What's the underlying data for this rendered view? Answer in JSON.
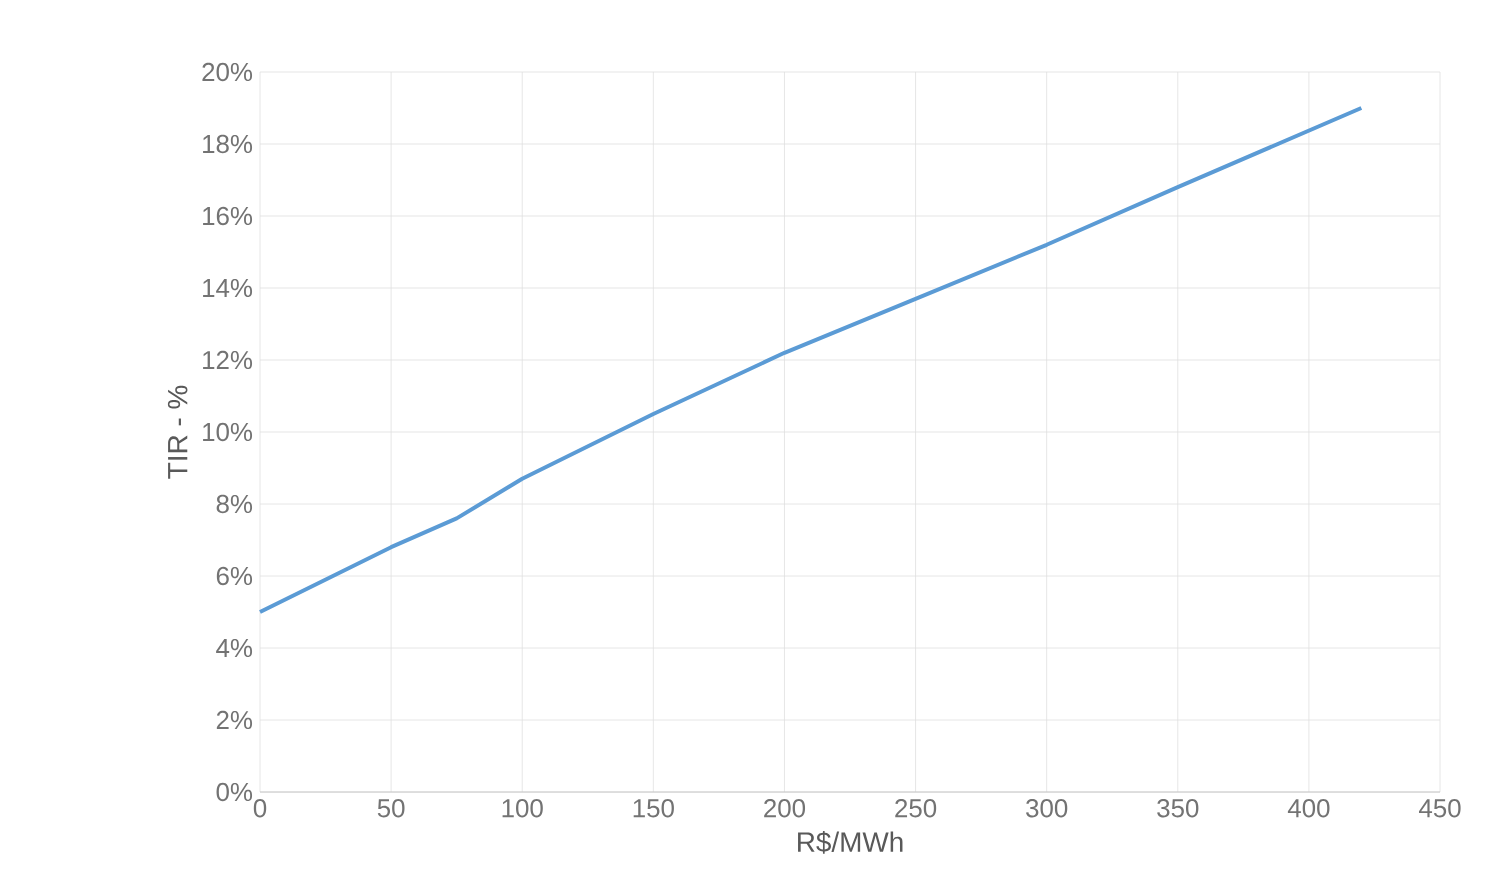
{
  "chart_data": {
    "type": "line",
    "xlabel": "R$/MWh",
    "ylabel": "TIR - %",
    "xlim": [
      0,
      450
    ],
    "xticks": [
      0,
      50,
      100,
      150,
      200,
      250,
      300,
      350,
      400,
      450
    ],
    "ylim": [
      0,
      20
    ],
    "yticks": [
      {
        "value": 0,
        "label": "0%"
      },
      {
        "value": 2,
        "label": "2%"
      },
      {
        "value": 4,
        "label": "4%"
      },
      {
        "value": 6,
        "label": "6%"
      },
      {
        "value": 8,
        "label": "8%"
      },
      {
        "value": 10,
        "label": "10%"
      },
      {
        "value": 12,
        "label": "12%"
      },
      {
        "value": 14,
        "label": "14%"
      },
      {
        "value": 16,
        "label": "16%"
      },
      {
        "value": 18,
        "label": "18%"
      },
      {
        "value": 20,
        "label": "20%"
      }
    ],
    "grid": true,
    "marker": "none",
    "line_style": "solid",
    "series": [
      {
        "color": "#5b9bd5",
        "x": [
          0,
          50,
          75,
          100,
          150,
          200,
          250,
          300,
          350,
          420
        ],
        "values": [
          5,
          6.8,
          7.6,
          8.7,
          10.5,
          12.2,
          13.7,
          15.2,
          16.8,
          19.0
        ]
      }
    ]
  }
}
